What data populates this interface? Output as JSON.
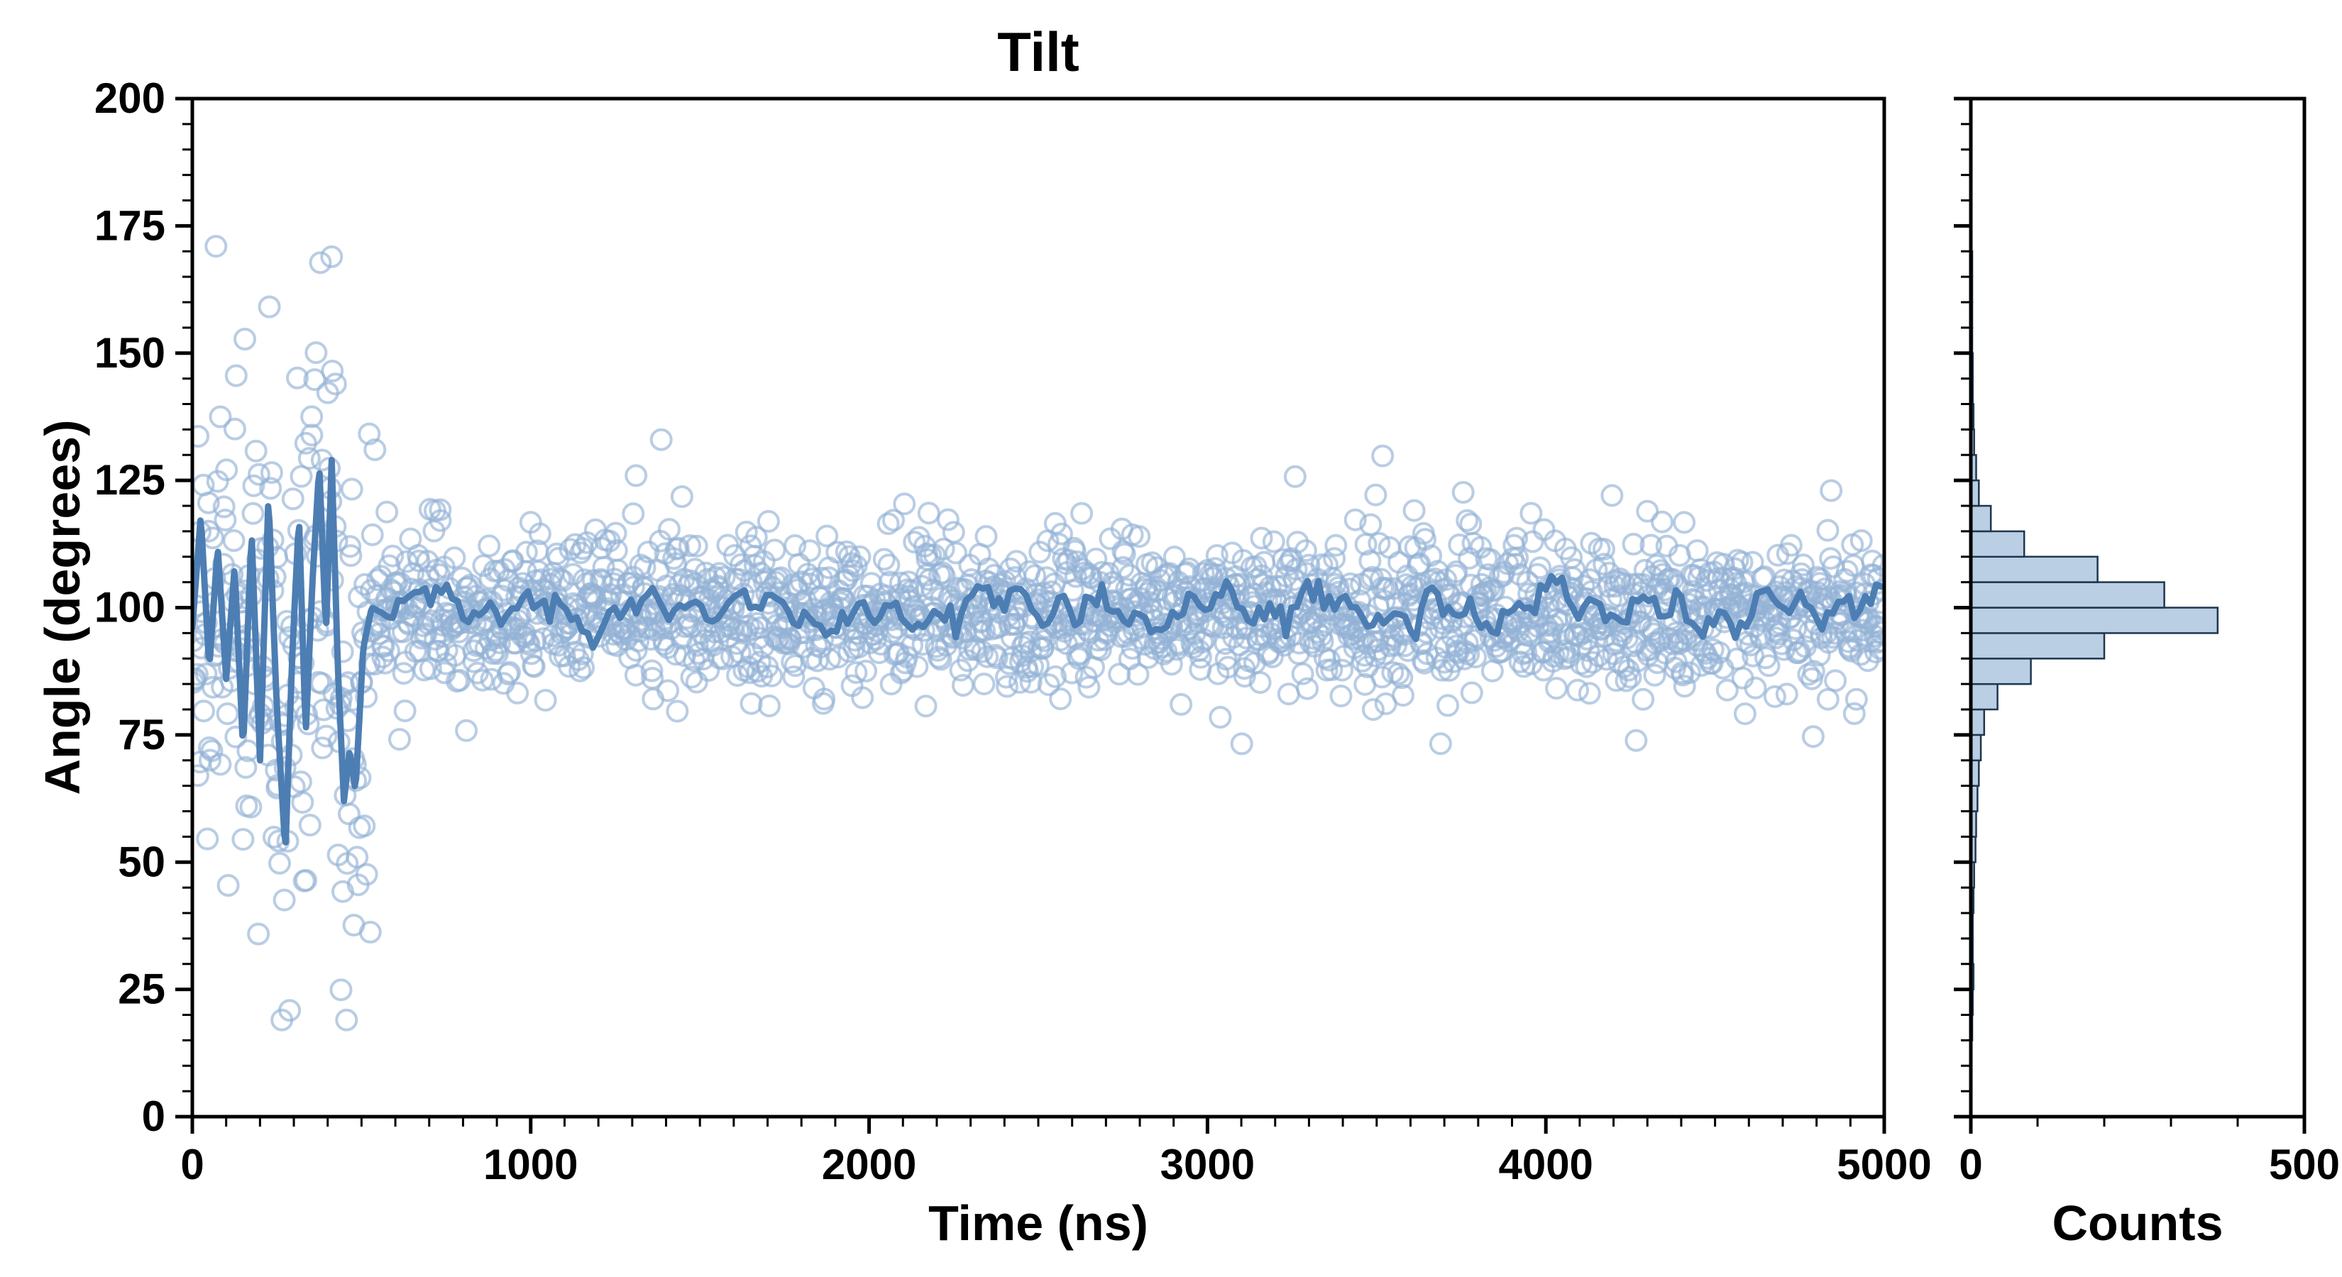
{
  "figure": {
    "title": "Tilt",
    "background": "#ffffff"
  },
  "chart_data": {
    "type": "scatter",
    "title": "Tilt",
    "xlabel": "Time (ns)",
    "ylabel": "Angle (degrees)",
    "xlim": [
      0,
      5000
    ],
    "ylim": [
      0,
      200
    ],
    "xticks": [
      0,
      1000,
      2000,
      3000,
      4000,
      5000
    ],
    "yticks": [
      0,
      25,
      50,
      75,
      100,
      125,
      150,
      175,
      200
    ],
    "x_minor_step": 100,
    "y_minor_step": 5,
    "grid": false,
    "legend": "none",
    "series": [
      {
        "name": "tilt-angle-samples",
        "type": "scatter",
        "marker": "open-circle",
        "color": "#93b2d6",
        "n_points": 2000,
        "x_range": [
          0,
          5000
        ],
        "equilibrium": {
          "start_ns": 540,
          "mean": 99.0,
          "std": 7.3,
          "outlier_fraction": 0.02
        },
        "transient": {
          "range_ns": [
            0,
            540
          ],
          "value_range": [
            19,
            171
          ],
          "spread_std": 27
        }
      },
      {
        "name": "running-average",
        "type": "line",
        "color": "#4d7eb3",
        "transient_anchors": [
          [
            0,
            96
          ],
          [
            25,
            118
          ],
          [
            50,
            88
          ],
          [
            75,
            112
          ],
          [
            100,
            86
          ],
          [
            125,
            108
          ],
          [
            150,
            72
          ],
          [
            175,
            115
          ],
          [
            200,
            70
          ],
          [
            225,
            122
          ],
          [
            250,
            80
          ],
          [
            275,
            52
          ],
          [
            295,
            90
          ],
          [
            315,
            118
          ],
          [
            335,
            75
          ],
          [
            355,
            105
          ],
          [
            375,
            128
          ],
          [
            395,
            95
          ],
          [
            412,
            129
          ],
          [
            430,
            88
          ],
          [
            448,
            62
          ],
          [
            465,
            72
          ],
          [
            482,
            64
          ],
          [
            505,
            92
          ],
          [
            530,
            100
          ],
          [
            560,
            99
          ]
        ],
        "equilibrium": {
          "start_ns": 560,
          "mean": 99.5,
          "wiggle_amplitude": 3.5,
          "noise_std": 1.4
        }
      }
    ],
    "histogram": {
      "name": "angle-distribution",
      "orientation": "horizontal",
      "xlabel": "Counts",
      "xlim": [
        0,
        500
      ],
      "xticks": [
        0,
        500
      ],
      "x_minor_step": 100,
      "bin_width_degrees": 5,
      "bins_start_degrees": 15,
      "counts": [
        2,
        3,
        4,
        3,
        3,
        4,
        5,
        7,
        8,
        10,
        12,
        15,
        20,
        40,
        90,
        200,
        370,
        290,
        190,
        80,
        30,
        12,
        8,
        5,
        4,
        3,
        3,
        2,
        2,
        2,
        1
      ],
      "fill": "#b3c9e1",
      "edge": "#1f364f"
    },
    "colors": {
      "scatter_edge": "#93b2d6",
      "line": "#4d7eb3",
      "hist_fill": "#b3c9e1",
      "hist_edge": "#1f364f",
      "axes": "#000000"
    }
  }
}
